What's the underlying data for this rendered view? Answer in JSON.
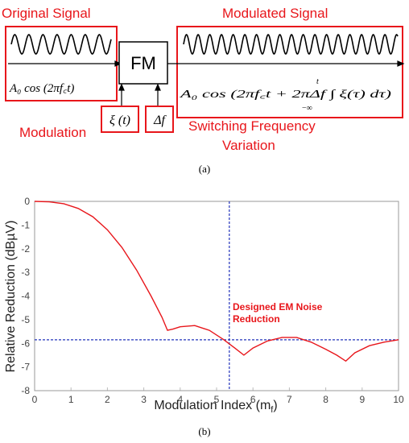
{
  "diagram": {
    "original_signal_label": "Original Signal",
    "modulated_signal_label": "Modulated Signal",
    "fm_block_label": "FM",
    "modulation_label": "Modulation",
    "switching_label_line1": "Switching Frequency",
    "switching_label_line2": "Variation",
    "xi_input": "ξ (t)",
    "delta_f_input": "Δf",
    "formula_original": "A₀ cos (2πf꜀t)",
    "formula_modulated": "A₀ cos (2πf꜀t + 2πΔf ∫ ξ(τ) dτ)",
    "integral_upper": "t",
    "integral_lower": "−∞",
    "caption": "(a)",
    "colors": {
      "highlight": "#e8161b",
      "signal": "#000000"
    }
  },
  "chart_data": {
    "type": "line",
    "xlabel": "Modulation Index (m",
    "xlabel_sub": "f",
    "xlabel_end": ")",
    "ylabel": "Relative Reduction (dBµV)",
    "xlim": [
      0,
      10
    ],
    "ylim": [
      -8,
      0
    ],
    "xticks": [
      "0",
      "1",
      "2",
      "3",
      "4",
      "5",
      "6",
      "7",
      "8",
      "9",
      "10"
    ],
    "yticks": [
      "0",
      "-1",
      "-2",
      "-3",
      "-4",
      "-5",
      "-6",
      "-7",
      "-8"
    ],
    "grid": false,
    "series": [
      {
        "color": "#e8161b",
        "points": [
          [
            0,
            0
          ],
          [
            0.4,
            -0.02
          ],
          [
            0.8,
            -0.1
          ],
          [
            1.2,
            -0.3
          ],
          [
            1.6,
            -0.65
          ],
          [
            2.0,
            -1.2
          ],
          [
            2.4,
            -1.95
          ],
          [
            2.8,
            -2.9
          ],
          [
            3.2,
            -4.0
          ],
          [
            3.5,
            -4.9
          ],
          [
            3.65,
            -5.45
          ],
          [
            3.8,
            -5.4
          ],
          [
            4.0,
            -5.3
          ],
          [
            4.4,
            -5.25
          ],
          [
            4.8,
            -5.45
          ],
          [
            5.2,
            -5.85
          ],
          [
            5.5,
            -6.2
          ],
          [
            5.75,
            -6.5
          ],
          [
            6.0,
            -6.2
          ],
          [
            6.4,
            -5.9
          ],
          [
            6.8,
            -5.75
          ],
          [
            7.2,
            -5.75
          ],
          [
            7.6,
            -5.95
          ],
          [
            8.0,
            -6.25
          ],
          [
            8.3,
            -6.5
          ],
          [
            8.55,
            -6.75
          ],
          [
            8.8,
            -6.4
          ],
          [
            9.2,
            -6.1
          ],
          [
            9.6,
            -5.95
          ],
          [
            10,
            -5.85
          ]
        ]
      }
    ],
    "reference_lines": {
      "vertical_x": 5.35,
      "horizontal_y": -5.85,
      "color": "#2233bb"
    },
    "annotation": [
      "Designed EM Noise",
      "Reduction"
    ],
    "caption": "(b)"
  }
}
